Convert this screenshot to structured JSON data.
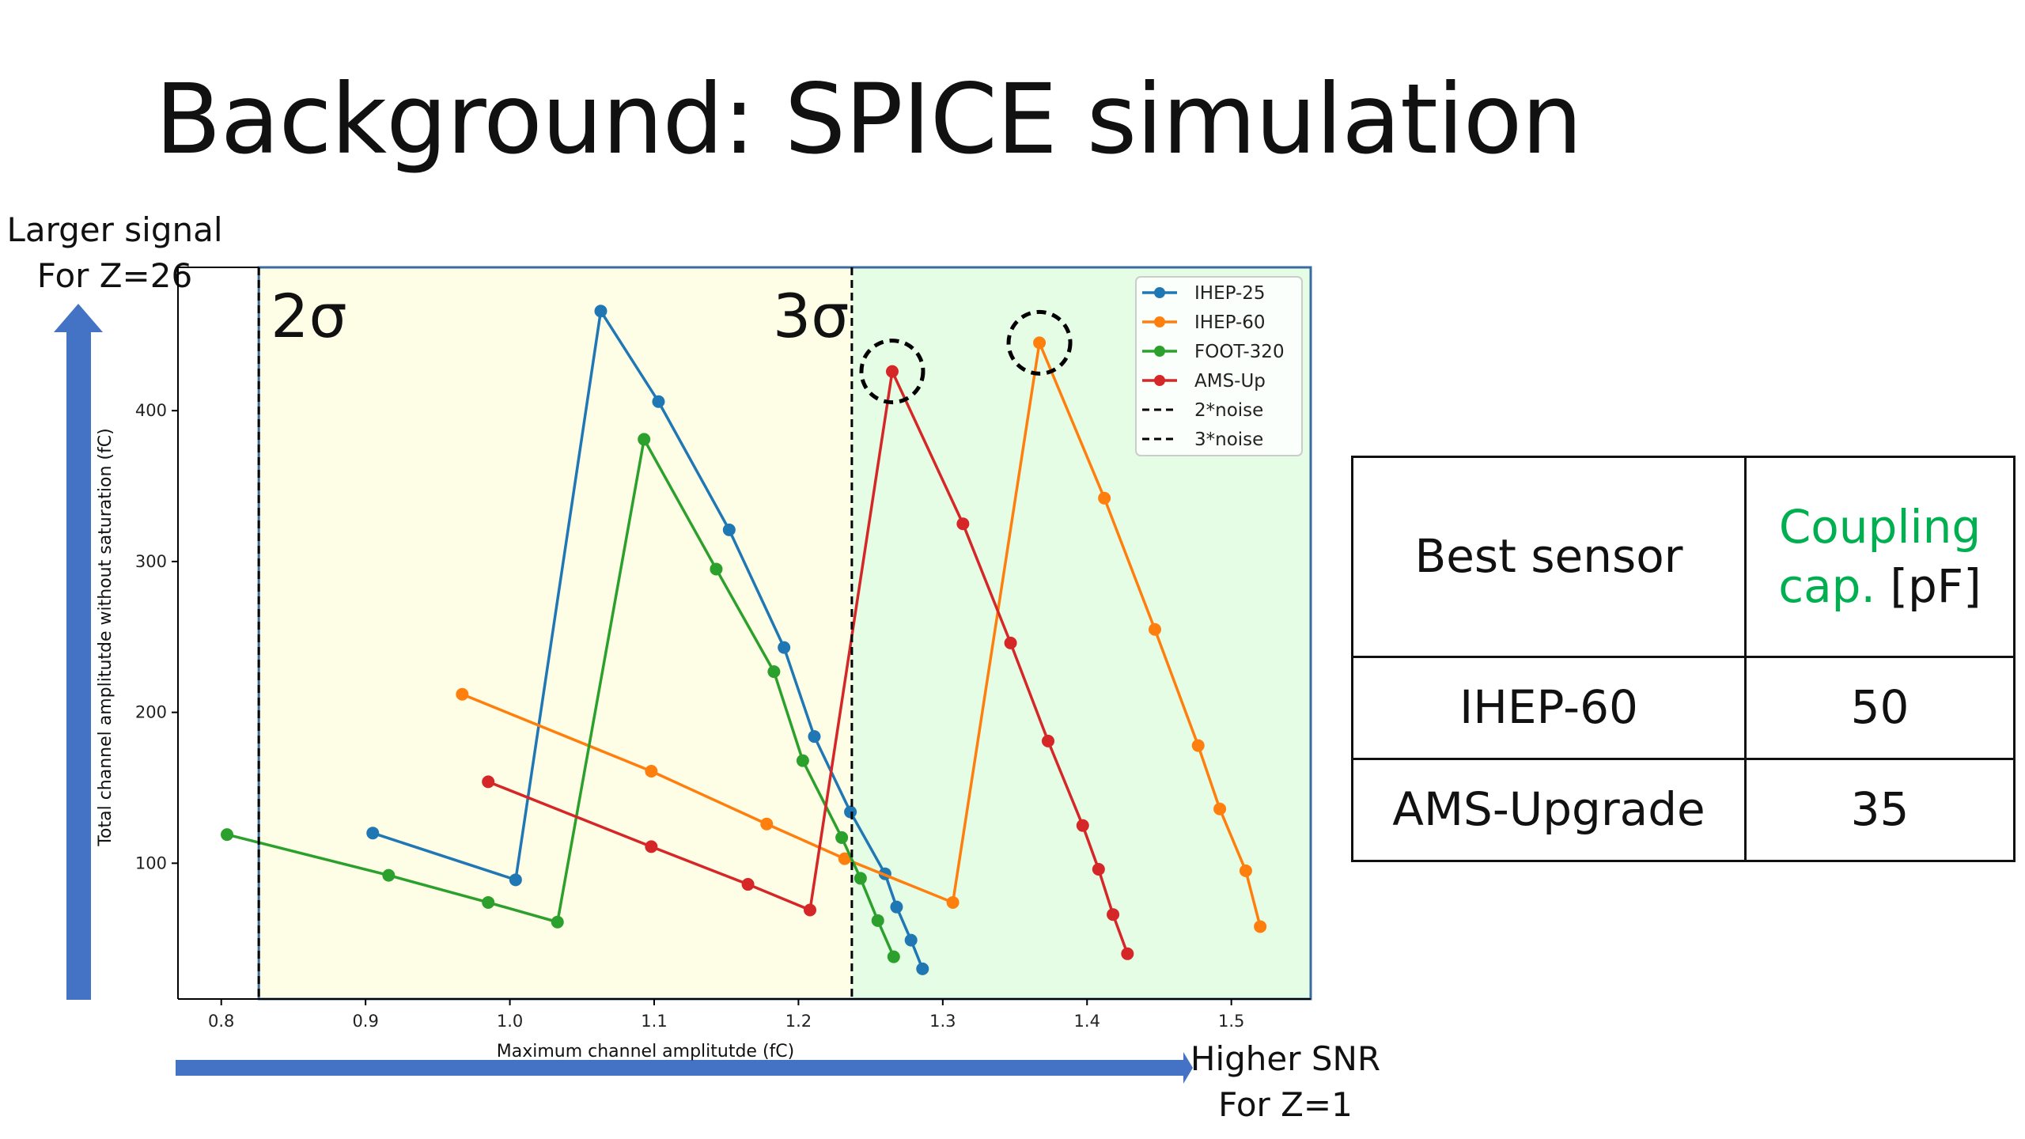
{
  "slide": {
    "title": "Background: SPICE simulation"
  },
  "annotations": {
    "up_line1": "Larger signal",
    "up_line2": "For Z=26",
    "right_line1": "Higher SNR",
    "right_line2": "For Z=1"
  },
  "colors": {
    "region_2sigma": "#fefee6",
    "region_3sigma": "#e4fde4",
    "arrow": "#4472c4",
    "highlight_green": "#00b050"
  },
  "chart_data": {
    "type": "line",
    "xlabel": "Maximum channel amplitutde (fC)",
    "ylabel": "Total channel amplitutde without saturation (fC)",
    "xlim": [
      0.77,
      1.555
    ],
    "ylim": [
      10,
      495
    ],
    "xticks": [
      0.8,
      0.9,
      1.0,
      1.1,
      1.2,
      1.3,
      1.4,
      1.5
    ],
    "xtick_labels": [
      "0.8",
      "0.9",
      "1.0",
      "1.1",
      "1.2",
      "1.3",
      "1.4",
      "1.5"
    ],
    "yticks": [
      100,
      200,
      300,
      400
    ],
    "ytick_labels": [
      "100",
      "200",
      "300",
      "400"
    ],
    "legend_position": "top-right",
    "series": [
      {
        "name": "IHEP-25",
        "color": "#1f77b4",
        "style": "solid",
        "x": [
          0.905,
          1.004,
          1.063,
          1.103,
          1.152,
          1.19,
          1.211,
          1.236,
          1.26,
          1.268,
          1.278,
          1.286
        ],
        "y": [
          120,
          89,
          466,
          406,
          321,
          243,
          184,
          134,
          93,
          71,
          49,
          30
        ]
      },
      {
        "name": "IHEP-60",
        "color": "#ff7f0e",
        "style": "solid",
        "x": [
          0.967,
          1.098,
          1.178,
          1.232,
          1.307,
          1.367,
          1.412,
          1.447,
          1.477,
          1.492,
          1.51,
          1.52
        ],
        "y": [
          212,
          161,
          126,
          103,
          74,
          445,
          342,
          255,
          178,
          136,
          95,
          58
        ]
      },
      {
        "name": "FOOT-320",
        "color": "#2ca02c",
        "style": "solid",
        "x": [
          0.804,
          0.916,
          0.985,
          1.033,
          1.093,
          1.143,
          1.183,
          1.203,
          1.23,
          1.243,
          1.255,
          1.266
        ],
        "y": [
          119,
          92,
          74,
          61,
          381,
          295,
          227,
          168,
          117,
          90,
          62,
          38
        ]
      },
      {
        "name": "AMS-Up",
        "color": "#d62728",
        "style": "solid",
        "x": [
          0.985,
          1.098,
          1.165,
          1.208,
          1.265,
          1.314,
          1.347,
          1.373,
          1.397,
          1.408,
          1.418,
          1.428
        ],
        "y": [
          154,
          111,
          86,
          69,
          426,
          325,
          246,
          181,
          125,
          96,
          66,
          40
        ]
      },
      {
        "name": "2*noise",
        "color": "#000000",
        "style": "dashed",
        "vline": 0.826
      },
      {
        "name": "3*noise",
        "color": "#000000",
        "style": "dashed",
        "vline": 1.237
      }
    ],
    "annotations": [
      {
        "text": "2σ",
        "region": "2*noise"
      },
      {
        "text": "3σ",
        "region": "3*noise"
      }
    ],
    "highlighted_points": [
      {
        "series": "AMS-Up",
        "x": 1.265,
        "y": 426
      },
      {
        "series": "IHEP-60",
        "x": 1.367,
        "y": 445
      }
    ]
  },
  "table": {
    "header": {
      "col1": "Best sensor",
      "col2_highlight": "Coupling cap.",
      "col2_unit": " [pF]"
    },
    "rows": [
      {
        "sensor": "IHEP-60",
        "cap": "50"
      },
      {
        "sensor": "AMS-Upgrade",
        "cap": "35"
      }
    ]
  }
}
